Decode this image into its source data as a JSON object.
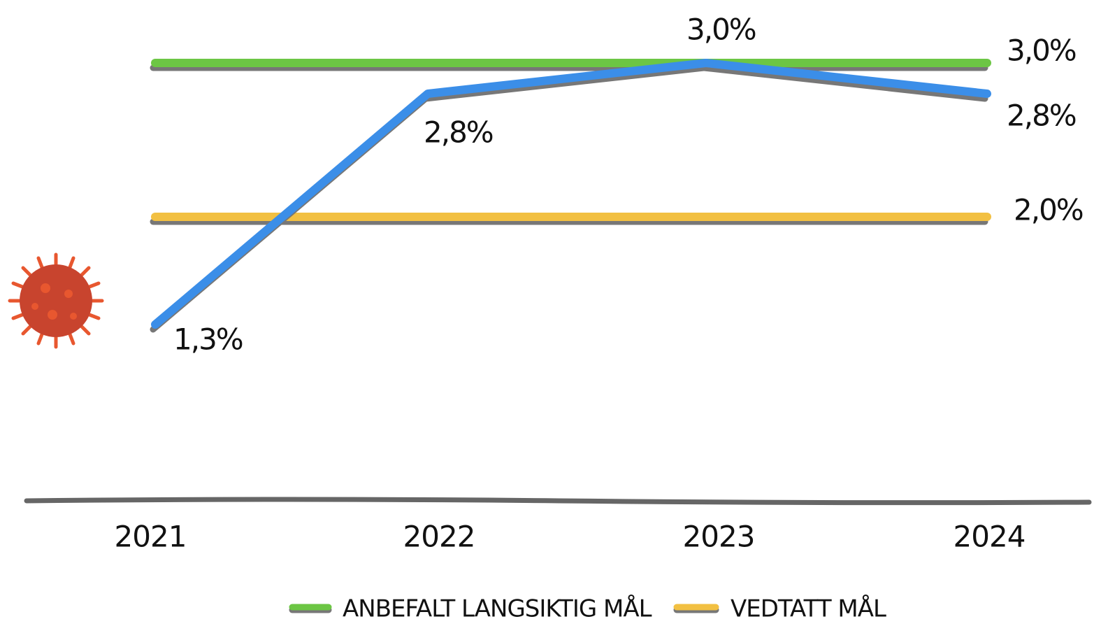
{
  "chart_data": {
    "type": "line",
    "categories": [
      "2021",
      "2022",
      "2023",
      "2024"
    ],
    "series": [
      {
        "name": "ANBEFALT LANGSIKTIG MÅL",
        "color": "#6cc644",
        "values": [
          3.0,
          3.0,
          3.0,
          3.0
        ],
        "value_labels": [
          null,
          null,
          null,
          "3,0%"
        ]
      },
      {
        "name": "VEDTATT MÅL",
        "color": "#f2c042",
        "values": [
          2.0,
          2.0,
          2.0,
          2.0
        ],
        "value_labels": [
          null,
          null,
          null,
          "2,0%"
        ]
      },
      {
        "color": "#3b8ee8",
        "values": [
          1.3,
          2.8,
          3.0,
          2.8
        ],
        "value_labels": [
          "1,3%",
          "2,8%",
          "3,0%",
          "2,8%"
        ]
      }
    ],
    "grid": false
  }
}
